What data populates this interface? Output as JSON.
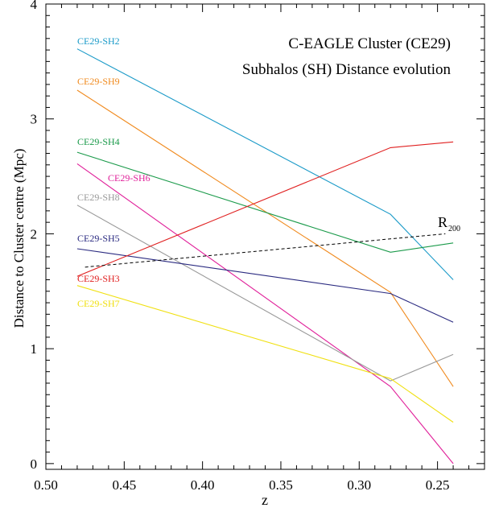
{
  "chart_data": {
    "type": "line",
    "title": "C-EAGLE Cluster (CE29)",
    "subtitle": "Subhalos (SH) Distance evolution",
    "xlabel": "z",
    "ylabel": "Distance to Cluster centre (Mpc)",
    "xlim": [
      0.5,
      0.22
    ],
    "ylim": [
      -0.05,
      4.0
    ],
    "x_reversed": true,
    "grid": false,
    "x_ticks": [
      0.5,
      0.45,
      0.4,
      0.35,
      0.3,
      0.25
    ],
    "x_tick_labels": [
      "0.50",
      "0.45",
      "0.40",
      "0.35",
      "0.30",
      "0.25"
    ],
    "y_ticks": [
      0,
      1,
      2,
      3,
      4
    ],
    "y_tick_labels": [
      "0",
      "1",
      "2",
      "3",
      "4"
    ],
    "x": [
      0.48,
      0.28,
      0.24
    ],
    "series": [
      {
        "name": "CE29-SH2",
        "color": "#1a9ac8",
        "values": [
          3.61,
          2.17,
          1.6
        ]
      },
      {
        "name": "CE29-SH9",
        "color": "#f08a1e",
        "values": [
          3.25,
          1.49,
          0.67
        ]
      },
      {
        "name": "CE29-SH4",
        "color": "#1a9a4a",
        "values": [
          2.71,
          1.84,
          1.92
        ]
      },
      {
        "name": "CE29-SH6",
        "color": "#e0209a",
        "values": [
          2.61,
          0.67,
          0.0
        ]
      },
      {
        "name": "CE29-SH8",
        "color": "#999999",
        "values": [
          2.25,
          0.72,
          0.95
        ]
      },
      {
        "name": "CE29-SH5",
        "color": "#2a2a80",
        "values": [
          1.87,
          1.48,
          1.23
        ]
      },
      {
        "name": "CE29-SH3",
        "color": "#e02020",
        "values": [
          1.63,
          2.75,
          2.8
        ]
      },
      {
        "name": "CE29-SH7",
        "color": "#f0e010",
        "values": [
          1.55,
          0.74,
          0.36
        ]
      }
    ],
    "reference_line": {
      "label_main": "R",
      "label_sub": "200",
      "color": "#000000",
      "style": "dashed",
      "x": [
        0.475,
        0.245
      ],
      "values": [
        1.71,
        2.0
      ]
    }
  }
}
